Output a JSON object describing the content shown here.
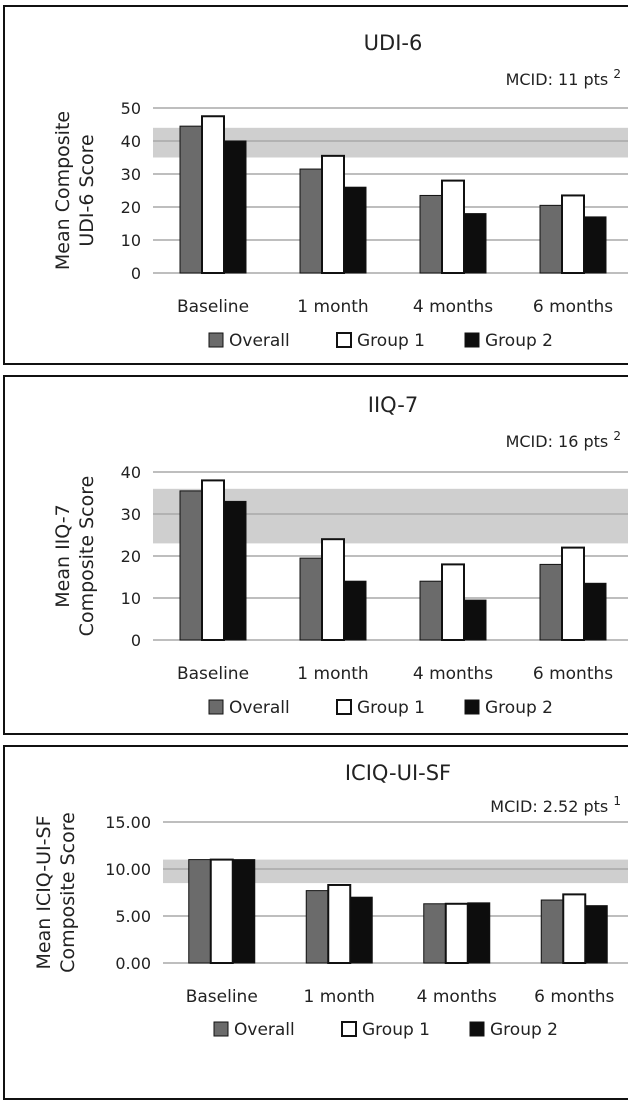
{
  "colors": {
    "overall": "#6b6b6b",
    "group1": "#ffffff",
    "group2": "#0d0d0d",
    "band": "#cfcfcf",
    "grid": "#a8a8a8",
    "border": "#111111"
  },
  "chart_data": [
    {
      "type": "bar",
      "title": "UDI-6",
      "mcid_label": "MCID: 11 pts",
      "mcid_note": "2",
      "ylabel": [
        "Mean Composite",
        "UDI-6 Score"
      ],
      "categories": [
        "Baseline",
        "1 month",
        "4 months",
        "6 months"
      ],
      "yticks": [
        "0",
        "10",
        "20",
        "30",
        "40",
        "50"
      ],
      "ylim": [
        0,
        50
      ],
      "mcid_band": [
        35,
        44
      ],
      "series": [
        {
          "name": "Overall",
          "values": [
            44.5,
            31.5,
            23.5,
            20.5
          ]
        },
        {
          "name": "Group 1",
          "values": [
            47.5,
            35.5,
            28,
            23.5
          ]
        },
        {
          "name": "Group 2",
          "values": [
            40,
            26,
            18,
            17
          ]
        }
      ],
      "legend": "bottom",
      "grid": true
    },
    {
      "type": "bar",
      "title": "IIQ-7",
      "mcid_label": "MCID: 16 pts",
      "mcid_note": "2",
      "ylabel": [
        "Mean IIQ-7",
        "Composite Score"
      ],
      "categories": [
        "Baseline",
        "1 month",
        "4 months",
        "6 months"
      ],
      "yticks": [
        "0",
        "10",
        "20",
        "30",
        "40"
      ],
      "ylim": [
        0,
        40
      ],
      "mcid_band": [
        23,
        36
      ],
      "series": [
        {
          "name": "Overall",
          "values": [
            35.5,
            19.5,
            14,
            18
          ]
        },
        {
          "name": "Group 1",
          "values": [
            38,
            24,
            18,
            22
          ]
        },
        {
          "name": "Group 2",
          "values": [
            33,
            14,
            9.5,
            13.5
          ]
        }
      ],
      "legend": "bottom",
      "grid": true
    },
    {
      "type": "bar",
      "title": "ICIQ-UI-SF",
      "mcid_label": "MCID: 2.52 pts",
      "mcid_note": "1",
      "ylabel": [
        "Mean ICIQ-UI-SF",
        "Composite Score"
      ],
      "categories": [
        "Baseline",
        "1 month",
        "4 months",
        "6 months"
      ],
      "yticks": [
        "0.00",
        "5.00",
        "10.00",
        "15.00"
      ],
      "ylim": [
        0,
        15
      ],
      "mcid_band": [
        8.5,
        11
      ],
      "series": [
        {
          "name": "Overall",
          "values": [
            11,
            7.7,
            6.3,
            6.7
          ]
        },
        {
          "name": "Group 1",
          "values": [
            11,
            8.3,
            6.3,
            7.3
          ]
        },
        {
          "name": "Group 2",
          "values": [
            11,
            7,
            6.4,
            6.1
          ]
        }
      ],
      "legend": "bottom",
      "grid": true
    }
  ]
}
